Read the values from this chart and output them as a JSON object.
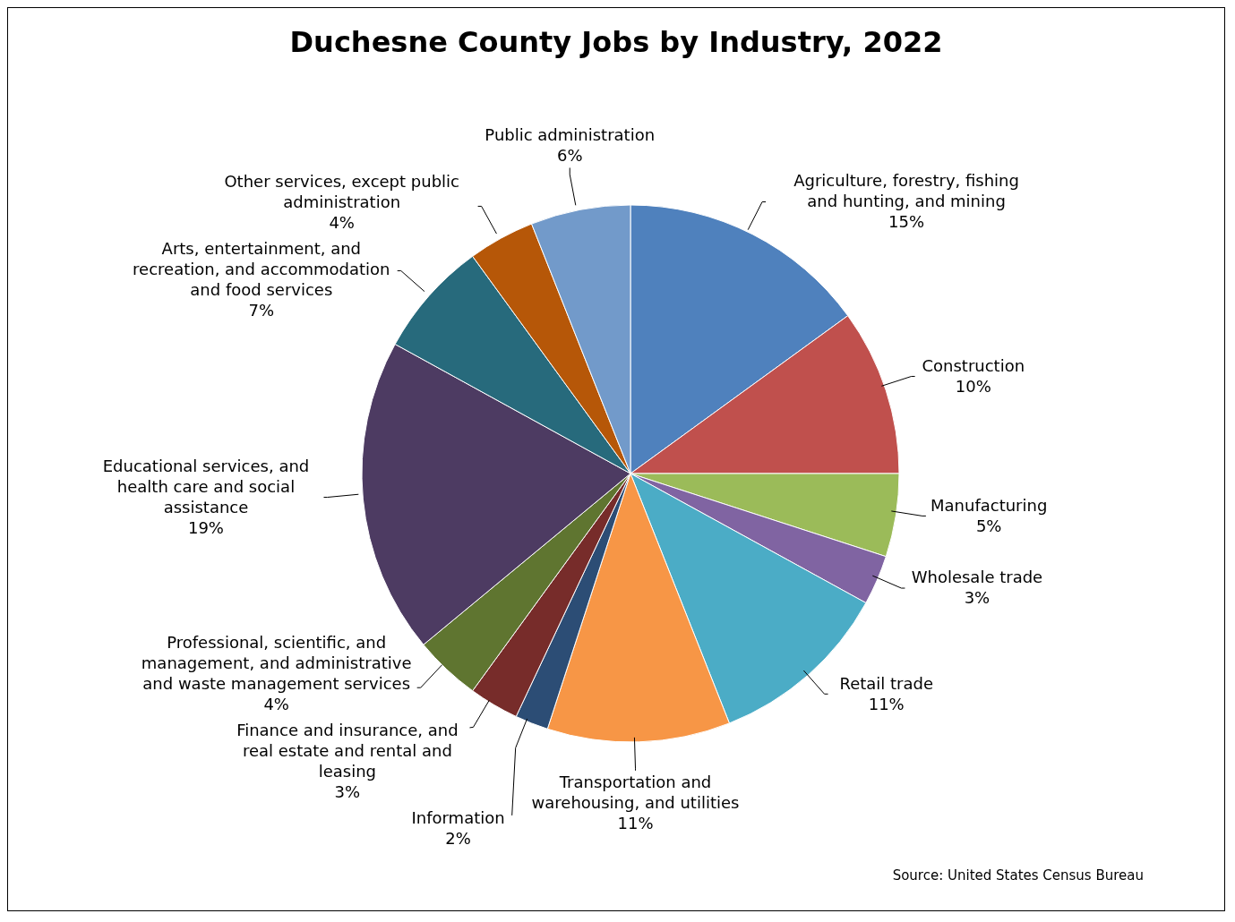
{
  "chart_data": {
    "type": "pie",
    "title": "Duchesne County Jobs by Industry, 2022",
    "categories": [
      "Agriculture, forestry, fishing and hunting, and mining",
      "Construction",
      "Manufacturing",
      "Wholesale trade",
      "Retail trade",
      "Transportation and warehousing, and utilities",
      "Information",
      "Finance and insurance, and real estate and rental and leasing",
      "Professional, scientific, and management, and administrative and waste management services",
      "Educational services, and health care and social assistance",
      "Arts, entertainment, and recreation, and accommodation and food services",
      "Other services, except public administration",
      "Public administration"
    ],
    "values": [
      15,
      10,
      5,
      3,
      11,
      11,
      2,
      3,
      4,
      19,
      7,
      4,
      6
    ],
    "value_labels": [
      "15%",
      "10%",
      "5%",
      "3%",
      "11%",
      "11%",
      "2%",
      "3%",
      "4%",
      "19%",
      "7%",
      "4%",
      "6%"
    ],
    "colors": [
      "#4f81bd",
      "#c0504d",
      "#9bbb59",
      "#8064a2",
      "#4bacc6",
      "#f79646",
      "#2c4d75",
      "#772c2a",
      "#5f7530",
      "#4d3b62",
      "#276a7c",
      "#b65708",
      "#729aca"
    ],
    "annotations": [
      "Source: United States Census Bureau"
    ]
  }
}
